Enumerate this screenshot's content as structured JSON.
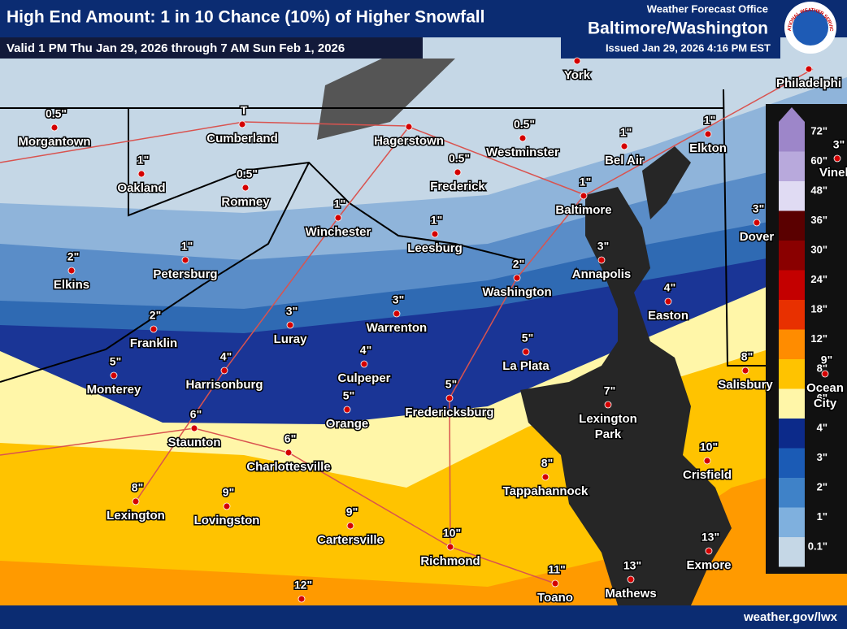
{
  "header": {
    "title": "High End Amount: 1 in 10 Chance (10%) of Higher Snowfall",
    "valid": "Valid 1 PM Thu Jan 29, 2026 through 7 AM Sun Feb 1, 2026",
    "office_label": "Weather Forecast Office",
    "office": "Baltimore/Washington",
    "issued": "Issued Jan 29, 2026 4:16 PM EST",
    "logo_text": "NATIONAL WEATHER SERVICE"
  },
  "legend": [
    "72\"",
    "60\"",
    "48\"",
    "36\"",
    "30\"",
    "24\"",
    "18\"",
    "12\"",
    "8\"",
    "6\"",
    "4\"",
    "3\"",
    "2\"",
    "1\"",
    "0.1\""
  ],
  "cities": [
    {
      "amount": "0.5\"",
      "name": "Morgantown"
    },
    {
      "amount": "T",
      "name": "Cumberland"
    },
    {
      "name": "Hagerstown"
    },
    {
      "name": "York"
    },
    {
      "name": "Philadelphi"
    },
    {
      "amount": "0.5\"",
      "name": "Westminster"
    },
    {
      "amount": "1\"",
      "name": "Bel Air"
    },
    {
      "amount": "1\"",
      "name": "Elkton"
    },
    {
      "amount": "1\"",
      "name": "Oakland"
    },
    {
      "amount": "0.5\"",
      "name": "Romney"
    },
    {
      "amount": "0.5\"",
      "name": "Frederick"
    },
    {
      "amount": "1\"",
      "name": "Baltimore"
    },
    {
      "amount": "1\"",
      "name": "Winchester"
    },
    {
      "amount": "1\"",
      "name": "Leesburg"
    },
    {
      "amount": "3\"",
      "name": "Dover"
    },
    {
      "amount": "3\"",
      "name": "Vinela"
    },
    {
      "amount": "1\"",
      "name": "Petersburg"
    },
    {
      "amount": "2\"",
      "name": "Elkins"
    },
    {
      "amount": "2\"",
      "name": "Washington"
    },
    {
      "amount": "3\"",
      "name": "Annapolis"
    },
    {
      "amount": "4\"",
      "name": "Easton"
    },
    {
      "amount": "2\"",
      "name": "Franklin"
    },
    {
      "amount": "3\"",
      "name": "Luray"
    },
    {
      "amount": "3\"",
      "name": "Warrenton"
    },
    {
      "amount": "5\"",
      "name": "La Plata"
    },
    {
      "amount": "5\"",
      "name": "Monterey"
    },
    {
      "amount": "4\"",
      "name": "Harrisonburg"
    },
    {
      "amount": "4\"",
      "name": "Culpeper"
    },
    {
      "amount": "5\"",
      "name": "Fredericksburg"
    },
    {
      "amount": "5\"",
      "name": "Orange"
    },
    {
      "amount": "7\"",
      "name": "Lexington",
      "name2": "Park"
    },
    {
      "amount": "8\"",
      "name": "Salisbury"
    },
    {
      "amount": "9\"",
      "name": "Ocean",
      "name2": "City"
    },
    {
      "amount": "6\"",
      "name": "Staunton"
    },
    {
      "amount": "6\"",
      "name": "Charlottesville"
    },
    {
      "amount": "8\"",
      "name": "Tappahannock"
    },
    {
      "amount": "10\"",
      "name": "Crisfield"
    },
    {
      "amount": "8\"",
      "name": "Lexington"
    },
    {
      "amount": "9\"",
      "name": "Lovingston"
    },
    {
      "amount": "9\"",
      "name": "Cartersville"
    },
    {
      "amount": "10\"",
      "name": "Richmond"
    },
    {
      "amount": "13\"",
      "name": "Exmore"
    },
    {
      "amount": "13\"",
      "name": "Mathews"
    },
    {
      "amount": "11\"",
      "name": "Toano"
    },
    {
      "amount": "12\""
    }
  ],
  "footer": {
    "url": "weather.gov/lwx"
  }
}
